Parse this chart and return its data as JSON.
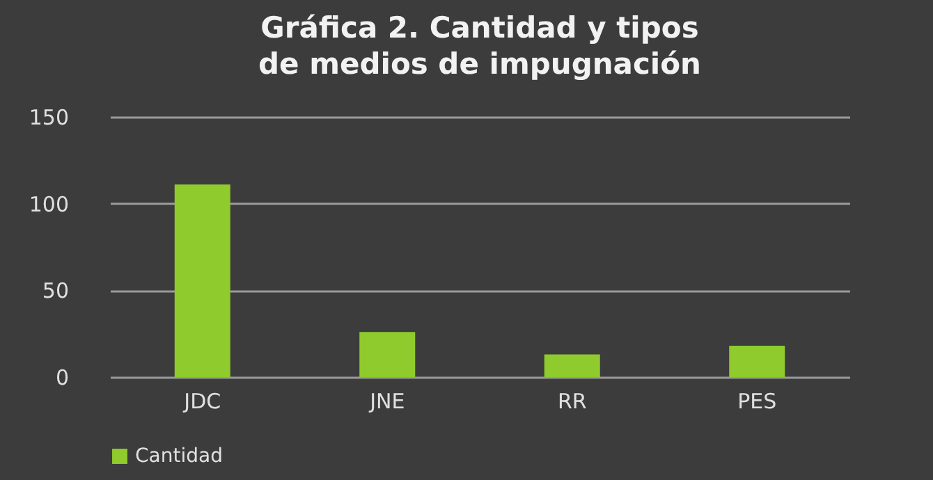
{
  "chart_data": {
    "type": "bar",
    "title": "Gráfica 2. Cantidad y tipos de medios de impugnación",
    "categories": [
      "JDC",
      "JNE",
      "RR",
      "PES"
    ],
    "series": [
      {
        "name": "Cantidad",
        "color": "#8fcb2c",
        "values": [
          111,
          26,
          13,
          18
        ]
      }
    ],
    "ylim": [
      0,
      150
    ],
    "yticks": [
      0,
      50,
      100,
      150
    ],
    "grid": "y",
    "legend": "bottom"
  }
}
